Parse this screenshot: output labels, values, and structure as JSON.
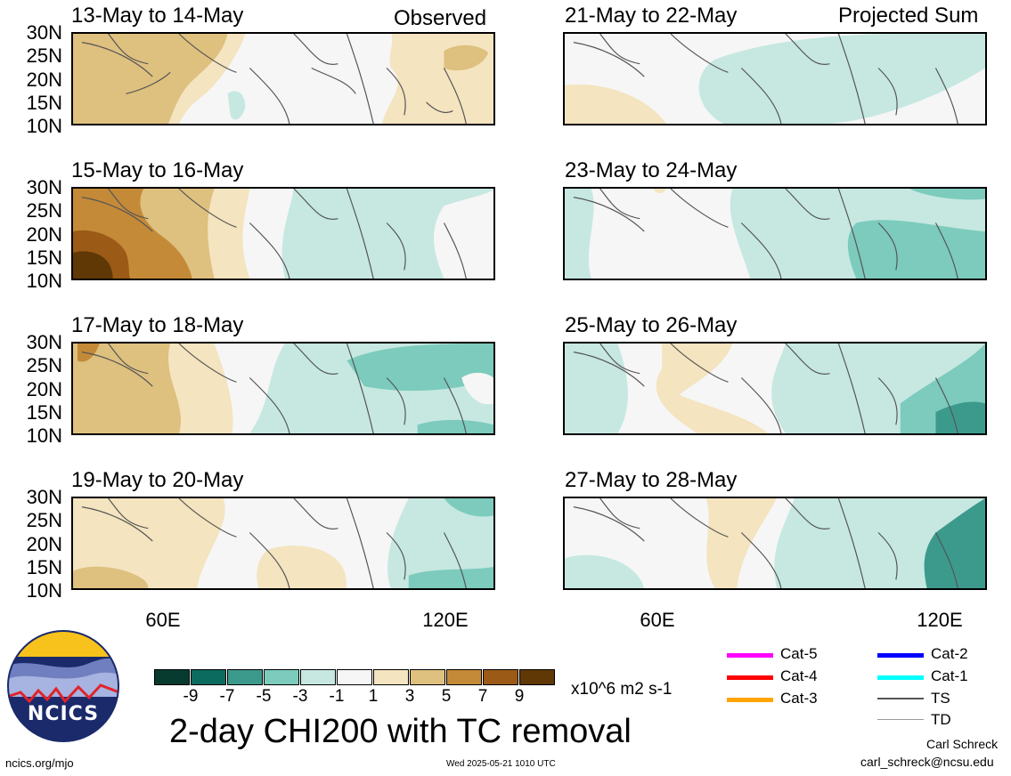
{
  "observed_label": "Observed",
  "projected_label": "Projected Sum",
  "panels": [
    {
      "date": "13-May to 14-May",
      "column": "left"
    },
    {
      "date": "15-May to 16-May",
      "column": "left"
    },
    {
      "date": "17-May to 18-May",
      "column": "left"
    },
    {
      "date": "19-May to 20-May",
      "column": "left"
    },
    {
      "date": "21-May to 22-May",
      "column": "right"
    },
    {
      "date": "23-May to 24-May",
      "column": "right"
    },
    {
      "date": "25-May to 26-May",
      "column": "right"
    },
    {
      "date": "27-May to 28-May",
      "column": "right"
    }
  ],
  "lat_labels": [
    "30N",
    "25N",
    "20N",
    "15N",
    "10N"
  ],
  "lon_labels": [
    "60E",
    "120E"
  ],
  "colorbar": {
    "colors": [
      "#073b30",
      "#0b6b5e",
      "#3c9a8d",
      "#7ccbbd",
      "#c6e8e1",
      "#f6f6f6",
      "#f4e4bf",
      "#dec07f",
      "#c48a38",
      "#9b5a15",
      "#5f3806"
    ],
    "ticks": [
      "-9",
      "-7",
      "-5",
      "-3",
      "-1",
      "1",
      "3",
      "5",
      "7",
      "9"
    ],
    "units": "x10^6 m2 s-1"
  },
  "main_title": "2-day CHI200 with TC removal",
  "legend": [
    {
      "label": "Cat-5",
      "color": "#ff00ff"
    },
    {
      "label": "Cat-4",
      "color": "#ff0000"
    },
    {
      "label": "Cat-3",
      "color": "#ffa500"
    },
    {
      "label": "Cat-2",
      "color": "#0000ff"
    },
    {
      "label": "Cat-1",
      "color": "#00ffff"
    },
    {
      "label": "TS",
      "color": "#555555"
    },
    {
      "label": "TD",
      "color": "#999999"
    }
  ],
  "logo_text": "NCICS",
  "footer": {
    "left": "ncics.org/mjo",
    "timestamp": "Wed 2025-05-21 1010 UTC",
    "author": "Carl Schreck",
    "email": "carl_schreck@ncsu.edu"
  }
}
